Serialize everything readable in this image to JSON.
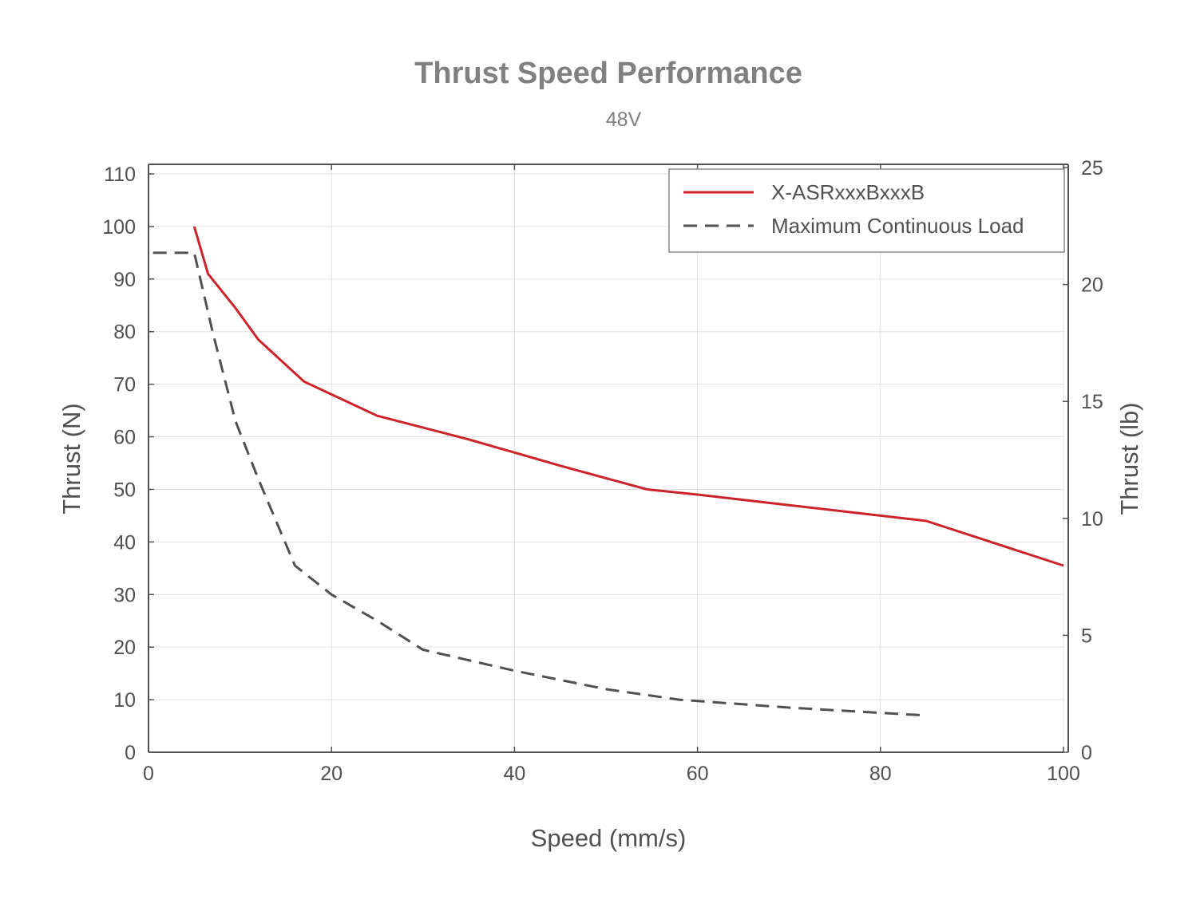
{
  "chart_data": {
    "type": "line",
    "title": "Thrust Speed Performance",
    "subtitle": "48V",
    "xlabel": "Speed (mm/s)",
    "ylabel": "Thrust (N)",
    "y2label": "Thrust (lb)",
    "xlim": [
      0,
      100
    ],
    "ylim": [
      0,
      110
    ],
    "y2lim": [
      0,
      25
    ],
    "xticks": [
      "0",
      "20",
      "40",
      "60",
      "80",
      "100"
    ],
    "xtick_values": [
      0,
      20,
      40,
      60,
      80,
      100
    ],
    "yticks": [
      "0",
      "10",
      "20",
      "30",
      "40",
      "50",
      "60",
      "70",
      "80",
      "90",
      "100",
      "110"
    ],
    "ytick_values": [
      0,
      10,
      20,
      30,
      40,
      50,
      60,
      70,
      80,
      90,
      100,
      110
    ],
    "y2ticks": [
      "0",
      "5",
      "10",
      "15",
      "20",
      "25"
    ],
    "y2tick_values": [
      0,
      5,
      10,
      15,
      20,
      25
    ],
    "grid": true,
    "legend_position": "top-right",
    "series": [
      {
        "name": "X-ASRxxxBxxxB",
        "color": "#cc2229",
        "style": "solid",
        "x": [
          5,
          6.5,
          9.5,
          12,
          17,
          25,
          35,
          45,
          54.5,
          60,
          70,
          85,
          100
        ],
        "y": [
          100,
          91,
          84.5,
          78.5,
          70.5,
          64,
          59.5,
          54.5,
          50,
          49,
          47,
          44,
          35.5
        ]
      },
      {
        "name": "Maximum Continuous Load",
        "color": "#505050",
        "style": "dashed",
        "x": [
          0.5,
          5,
          7,
          9.5,
          12,
          16,
          20,
          25,
          30,
          40,
          50,
          58,
          70,
          85
        ],
        "y": [
          95,
          95,
          80,
          63,
          52,
          35.5,
          30,
          25,
          19.5,
          15.5,
          12,
          10,
          8.5,
          7
        ]
      }
    ]
  }
}
